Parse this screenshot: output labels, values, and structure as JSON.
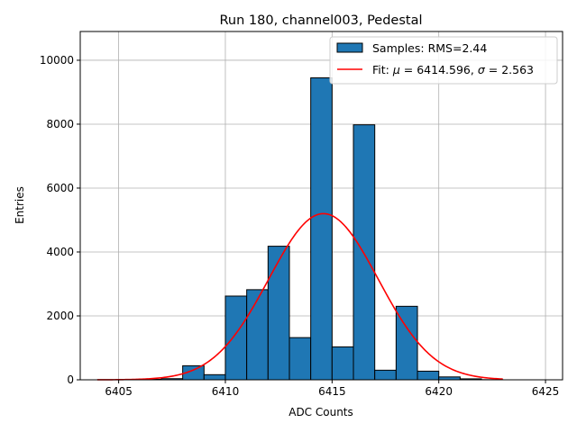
{
  "chart_data": {
    "type": "bar",
    "title": "Run 180, channel003, Pedestal",
    "xlabel": "ADC Counts",
    "ylabel": "Entries",
    "xlim": [
      6403.2,
      6425.8
    ],
    "ylim": [
      0,
      10900
    ],
    "xticks": [
      6405,
      6410,
      6415,
      6420,
      6425
    ],
    "yticks": [
      0,
      2000,
      4000,
      6000,
      8000,
      10000
    ],
    "grid": true,
    "legend_position": "top-right",
    "bin_width": 1,
    "histogram": {
      "name": "Samples: RMS=2.44",
      "color": "#1f77b4",
      "bin_starts": [
        6404,
        6405,
        6406,
        6407,
        6408,
        6409,
        6410,
        6411,
        6412,
        6413,
        6414,
        6415,
        6416,
        6417,
        6418,
        6419,
        6420,
        6421,
        6422
      ],
      "values": [
        2,
        5,
        15,
        35,
        440,
        160,
        2620,
        2820,
        4180,
        1320,
        9450,
        1030,
        7980,
        300,
        2300,
        270,
        90,
        30,
        5
      ]
    },
    "fit": {
      "name_prefix": "Fit: ",
      "mu_label": "μ",
      "sigma_label": "σ",
      "mean": 6414.596,
      "sigma": 2.563,
      "mean_text": "6414.596",
      "sigma_text": "2.563",
      "amplitude": 5200,
      "x_range": [
        6404,
        6423
      ],
      "color": "#ff0000"
    }
  }
}
